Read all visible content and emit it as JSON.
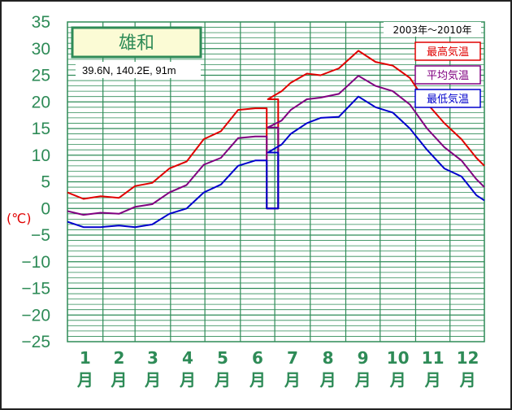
{
  "chart_data": {
    "type": "line",
    "station": {
      "name": "雄和",
      "location": "39.6N,  140.2E,  91m"
    },
    "period": "2003年〜2010年",
    "ylabel": "(℃)",
    "ylim": [
      -25,
      35
    ],
    "yticks": [
      "35",
      "30",
      "25",
      "20",
      "15",
      "10",
      "5",
      "0",
      "−5",
      "−10",
      "−15",
      "−20",
      "−25"
    ],
    "months": [
      {
        "num": "1",
        "unit": "月"
      },
      {
        "num": "2",
        "unit": "月"
      },
      {
        "num": "3",
        "unit": "月"
      },
      {
        "num": "4",
        "unit": "月"
      },
      {
        "num": "5",
        "unit": "月"
      },
      {
        "num": "6",
        "unit": "月"
      },
      {
        "num": "7",
        "unit": "月"
      },
      {
        "num": "8",
        "unit": "月"
      },
      {
        "num": "9",
        "unit": "月"
      },
      {
        "num": "10",
        "unit": "月"
      },
      {
        "num": "11",
        "unit": "月"
      },
      {
        "num": "12",
        "unit": "月"
      }
    ],
    "grid": true,
    "legend_position": "top-right",
    "x": [
      1,
      15,
      30,
      46,
      60,
      75,
      90,
      105,
      120,
      135,
      150,
      165,
      176,
      188,
      196,
      210,
      222,
      238,
      255,
      270,
      285,
      300,
      315,
      330,
      345,
      358,
      365
    ],
    "series": [
      {
        "name": "最高気温",
        "color": "#e00000",
        "values": [
          3.0,
          1.8,
          2.3,
          2.0,
          4.2,
          4.8,
          7.5,
          8.8,
          13.0,
          14.5,
          18.5,
          18.8,
          20.5,
          22.0,
          23.6,
          25.3,
          25.0,
          26.3,
          29.6,
          27.5,
          26.8,
          24.5,
          19.7,
          16.0,
          13.0,
          9.5,
          8.0
        ]
      },
      {
        "name": "平均気温",
        "color": "#800080",
        "values": [
          -0.5,
          -1.2,
          -0.8,
          -1.0,
          0.3,
          0.8,
          3.0,
          4.4,
          8.2,
          9.5,
          13.2,
          13.5,
          15.2,
          16.5,
          18.5,
          20.5,
          20.8,
          21.5,
          24.9,
          23.0,
          22.0,
          19.5,
          15.0,
          11.5,
          9.0,
          5.5,
          4.0
        ]
      },
      {
        "name": "最低気温",
        "color": "#0000cc",
        "values": [
          -2.5,
          -3.5,
          -3.5,
          -3.2,
          -3.5,
          -3.0,
          -1.0,
          0.0,
          3.0,
          4.5,
          8.0,
          9.0,
          10.5,
          12.0,
          14.0,
          16.0,
          17.0,
          17.2,
          21.0,
          19.0,
          18.0,
          15.0,
          11.0,
          7.5,
          6.0,
          2.5,
          1.5
        ]
      }
    ],
    "gap": {
      "x_start": 175,
      "x_end": 185
    }
  }
}
